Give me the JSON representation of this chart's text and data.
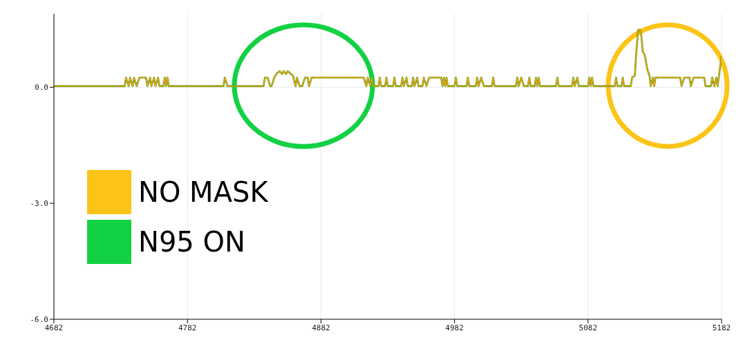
{
  "chart_data": {
    "type": "line",
    "x": [
      4682,
      4735,
      4736,
      4738,
      4739,
      4741,
      4742,
      4744,
      4746,
      4751,
      4752,
      4754,
      4755,
      4757,
      4758,
      4760,
      4761,
      4764,
      4765,
      4766,
      4767,
      4768,
      4809,
      4810,
      4812,
      4839,
      4840,
      4842,
      4844,
      4845,
      4847,
      4849,
      4851,
      4853,
      4854,
      4856,
      4857,
      4859,
      4861,
      4863,
      4864,
      4866,
      4868,
      4870,
      4872,
      4873,
      4875,
      4914,
      4916,
      4917,
      4919,
      4920,
      4921,
      4925,
      4926,
      4927,
      4930,
      4931,
      4932,
      4936,
      4937,
      4938,
      4942,
      4943,
      4944,
      4946,
      4947,
      4950,
      4951,
      4952,
      4954,
      4955,
      4958,
      4959,
      4961,
      4963,
      4972,
      4973,
      4974,
      4975,
      4976,
      4977,
      4982,
      4983,
      4984,
      4991,
      4992,
      4993,
      4998,
      4999,
      5000,
      5002,
      5004,
      5010,
      5011,
      5012,
      5028,
      5029,
      5030,
      5032,
      5034,
      5037,
      5038,
      5039,
      5042,
      5043,
      5044,
      5045,
      5046,
      5058,
      5059,
      5060,
      5070,
      5071,
      5072,
      5074,
      5075,
      5082,
      5083,
      5084,
      5085,
      5086,
      5102,
      5103,
      5104,
      5107,
      5108,
      5109,
      5114,
      5115,
      5117,
      5118,
      5119.5,
      5121,
      5122,
      5123,
      5124.5,
      5126.5,
      5128,
      5129,
      5130.5,
      5131.5,
      5132.5,
      5151,
      5152,
      5154,
      5158,
      5159,
      5161,
      5169,
      5170,
      5174,
      5175,
      5176.5,
      5178,
      5179,
      5182
    ],
    "series": [
      {
        "color": "#4c9a00",
        "values": [
          0.03,
          0.03,
          0.25,
          0.03,
          0.25,
          0.03,
          0.25,
          0.03,
          0.25,
          0.25,
          0.03,
          0.25,
          0.03,
          0.25,
          0.03,
          0.25,
          0.03,
          0.03,
          0.25,
          0.03,
          0.25,
          0.03,
          0.03,
          0.25,
          0.03,
          0.03,
          0.25,
          0.25,
          0.03,
          0.03,
          0.25,
          0.36,
          0.42,
          0.34,
          0.42,
          0.34,
          0.42,
          0.36,
          0.3,
          0.03,
          0.25,
          0.03,
          0.03,
          0.25,
          0.25,
          0.03,
          0.25,
          0.25,
          0.03,
          0.25,
          0.03,
          0.25,
          0.03,
          0.03,
          0.25,
          0.03,
          0.03,
          0.25,
          0.03,
          0.03,
          0.25,
          0.03,
          0.03,
          0.25,
          0.03,
          0.25,
          0.03,
          0.03,
          0.25,
          0.03,
          0.25,
          0.03,
          0.03,
          0.25,
          0.03,
          0.25,
          0.25,
          0.03,
          0.25,
          0.03,
          0.25,
          0.03,
          0.03,
          0.25,
          0.03,
          0.03,
          0.25,
          0.03,
          0.03,
          0.25,
          0.03,
          0.25,
          0.03,
          0.03,
          0.25,
          0.03,
          0.03,
          0.25,
          0.03,
          0.25,
          0.03,
          0.03,
          0.25,
          0.03,
          0.03,
          0.25,
          0.03,
          0.25,
          0.03,
          0.03,
          0.25,
          0.03,
          0.03,
          0.25,
          0.03,
          0.25,
          0.03,
          0.03,
          0.25,
          0.03,
          0.25,
          0.03,
          0.03,
          0.25,
          0.03,
          0.03,
          0.25,
          0.03,
          0.03,
          0.25,
          0.3,
          0.83,
          1.49,
          1.49,
          1.3,
          0.92,
          0.83,
          0.45,
          0.3,
          0.03,
          0.25,
          0.03,
          0.25,
          0.25,
          0.03,
          0.25,
          0.25,
          0.03,
          0.25,
          0.25,
          0.03,
          0.03,
          0.25,
          0.03,
          0.25,
          0.03,
          0.8
        ]
      },
      {
        "color": "#f5a623",
        "values": [
          0.03,
          0.03,
          0.25,
          0.03,
          0.25,
          0.03,
          0.25,
          0.03,
          0.25,
          0.25,
          0.03,
          0.25,
          0.03,
          0.25,
          0.03,
          0.25,
          0.03,
          0.03,
          0.25,
          0.03,
          0.25,
          0.03,
          0.03,
          0.25,
          0.03,
          0.03,
          0.25,
          0.25,
          0.03,
          0.03,
          0.25,
          0.36,
          0.42,
          0.34,
          0.42,
          0.34,
          0.42,
          0.36,
          0.3,
          0.03,
          0.25,
          0.03,
          0.03,
          0.25,
          0.25,
          0.03,
          0.25,
          0.25,
          0.03,
          0.25,
          0.03,
          0.25,
          0.03,
          0.03,
          0.25,
          0.03,
          0.03,
          0.25,
          0.03,
          0.03,
          0.25,
          0.03,
          0.03,
          0.25,
          0.03,
          0.25,
          0.03,
          0.03,
          0.25,
          0.03,
          0.25,
          0.03,
          0.03,
          0.25,
          0.03,
          0.25,
          0.25,
          0.03,
          0.25,
          0.03,
          0.25,
          0.03,
          0.03,
          0.25,
          0.03,
          0.03,
          0.25,
          0.03,
          0.03,
          0.25,
          0.03,
          0.25,
          0.03,
          0.03,
          0.25,
          0.03,
          0.03,
          0.25,
          0.03,
          0.25,
          0.03,
          0.03,
          0.25,
          0.03,
          0.03,
          0.25,
          0.03,
          0.25,
          0.03,
          0.03,
          0.25,
          0.03,
          0.03,
          0.25,
          0.03,
          0.25,
          0.03,
          0.03,
          0.25,
          0.03,
          0.25,
          0.03,
          0.03,
          0.25,
          0.03,
          0.03,
          0.25,
          0.03,
          0.03,
          0.25,
          0.3,
          0.83,
          1.49,
          1.49,
          1.3,
          0.92,
          0.83,
          0.45,
          0.3,
          0.03,
          0.25,
          0.03,
          0.25,
          0.25,
          0.03,
          0.25,
          0.25,
          0.03,
          0.25,
          0.25,
          0.03,
          0.03,
          0.25,
          0.03,
          0.25,
          0.03,
          0.8
        ]
      }
    ],
    "xlim": [
      4682,
      5182
    ],
    "xticks": [
      4682,
      4782,
      4882,
      4982,
      5082,
      5182
    ],
    "ylim": [
      -6,
      1.9
    ],
    "yticks": [
      {
        "value": -6,
        "label": "-6.0"
      },
      {
        "value": -3,
        "label": "-3.0"
      },
      {
        "value": 0,
        "label": "0.0"
      }
    ],
    "annotations": [
      "NO MASK",
      "N95 ON"
    ],
    "grid": true,
    "marker": "none",
    "line_style": "solid"
  }
}
